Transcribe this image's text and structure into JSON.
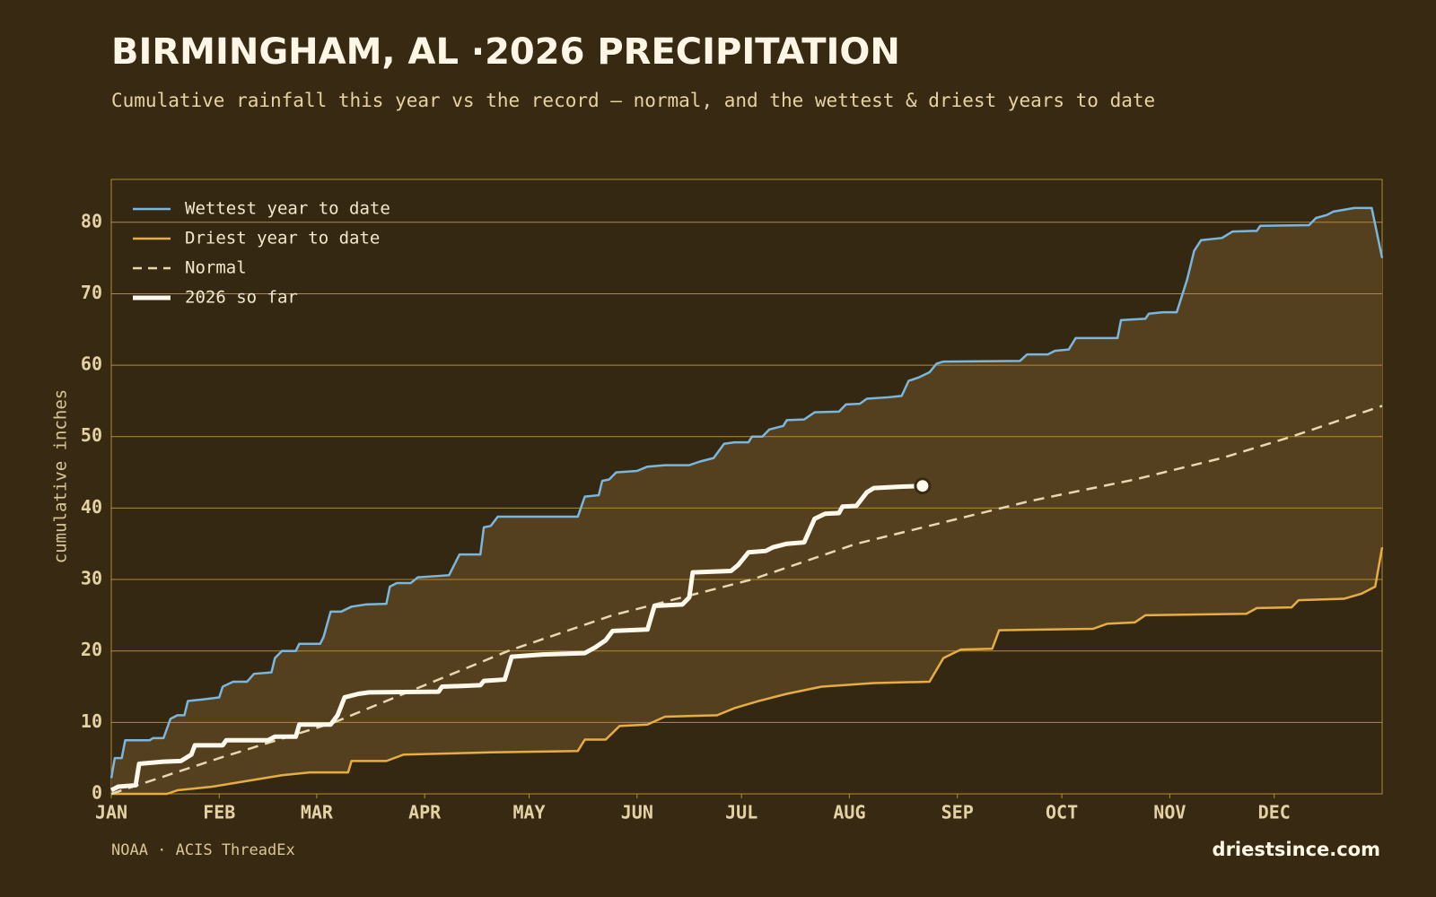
{
  "chart_data": {
    "type": "line",
    "title": "BIRMINGHAM, AL ·2026 PRECIPITATION",
    "subtitle": "Cumulative rainfall this year vs the record — normal, and the wettest & driest years to date",
    "y_label": "cumulative inches",
    "source": "NOAA · ACIS ThreadEx",
    "site": "driestsince.com",
    "xlim": [
      1,
      366
    ],
    "xticks": [
      {
        "value": 1,
        "label": "JAN"
      },
      {
        "value": 32,
        "label": "FEB"
      },
      {
        "value": 60,
        "label": "MAR"
      },
      {
        "value": 91,
        "label": "APR"
      },
      {
        "value": 121,
        "label": "MAY"
      },
      {
        "value": 152,
        "label": "JUN"
      },
      {
        "value": 182,
        "label": "JUL"
      },
      {
        "value": 213,
        "label": "AUG"
      },
      {
        "value": 244,
        "label": "SEP"
      },
      {
        "value": 274,
        "label": "OCT"
      },
      {
        "value": 305,
        "label": "NOV"
      },
      {
        "value": 335,
        "label": "DEC"
      }
    ],
    "ylim": [
      0,
      86
    ],
    "yticks": [
      0,
      10,
      20,
      30,
      40,
      50,
      60,
      70,
      80
    ],
    "grid": true,
    "legend": "top-left",
    "band_color": "#54401e",
    "series": [
      {
        "name": "Wettest year to date",
        "color": "#7ab6de",
        "style": "solid",
        "x": [
          1,
          2,
          4,
          5,
          12,
          13,
          16,
          18,
          20,
          22,
          23,
          27,
          32,
          33,
          36,
          40,
          42,
          47,
          48,
          50,
          54,
          55,
          61,
          62,
          64,
          67,
          70,
          74,
          80,
          81,
          83,
          87,
          89,
          95,
          98,
          101,
          107,
          108,
          110,
          112,
          135,
          137,
          141,
          142,
          144,
          146,
          152,
          155,
          160,
          167,
          170,
          174,
          177,
          180,
          184,
          185,
          188,
          190,
          194,
          195,
          200,
          203,
          210,
          212,
          216,
          218,
          224,
          228,
          230,
          233,
          236,
          238,
          240,
          262,
          264,
          270,
          272,
          276,
          278,
          290,
          291,
          298,
          299,
          303,
          307,
          310,
          312,
          314,
          320,
          323,
          330,
          331,
          345,
          347,
          350,
          352,
          358,
          363,
          366
        ],
        "values": [
          2.2,
          5,
          5,
          7.5,
          7.5,
          7.8,
          7.8,
          10.5,
          11,
          11,
          13,
          13.2,
          13.5,
          15,
          15.7,
          15.7,
          16.8,
          17,
          19,
          20,
          20,
          21,
          21,
          22,
          25.5,
          25.5,
          26.2,
          26.5,
          26.6,
          29,
          29.5,
          29.5,
          30.3,
          30.5,
          30.6,
          33.5,
          33.5,
          37.3,
          37.5,
          38.8,
          38.8,
          41.6,
          41.8,
          43.8,
          44,
          45,
          45.2,
          45.8,
          46,
          46,
          46.5,
          47,
          49,
          49.2,
          49.2,
          50,
          50,
          51,
          51.5,
          52.3,
          52.4,
          53.4,
          53.5,
          54.5,
          54.6,
          55.3,
          55.5,
          55.7,
          57.8,
          58.3,
          59,
          60.2,
          60.5,
          60.6,
          61.5,
          61.5,
          62,
          62.2,
          63.8,
          63.8,
          66.3,
          66.5,
          67.2,
          67.4,
          67.4,
          72,
          76,
          77.5,
          77.8,
          78.7,
          78.8,
          79.5,
          79.6,
          80.6,
          81,
          81.5,
          82,
          82,
          75
        ]
      },
      {
        "name": "Driest year to date",
        "color": "#e6ae40",
        "style": "solid",
        "x": [
          1,
          17,
          20,
          30,
          40,
          50,
          58,
          69,
          70,
          80,
          85,
          110,
          135,
          137,
          143,
          147,
          155,
          160,
          175,
          180,
          187,
          195,
          205,
          220,
          236,
          240,
          245,
          254,
          256,
          283,
          287,
          295,
          298,
          327,
          330,
          340,
          342,
          355,
          360,
          364,
          366
        ],
        "values": [
          0,
          0,
          0.5,
          1,
          1.8,
          2.6,
          3,
          3,
          4.6,
          4.6,
          5.5,
          5.8,
          6,
          7.6,
          7.6,
          9.5,
          9.7,
          10.8,
          11,
          12,
          13,
          14,
          15,
          15.5,
          15.7,
          19,
          20.2,
          20.3,
          22.9,
          23.1,
          23.8,
          24,
          25,
          25.2,
          26,
          26.1,
          27.1,
          27.3,
          28,
          29,
          34.5
        ]
      },
      {
        "name": "Normal",
        "color": "#e8d8b0",
        "style": "dashed",
        "x": [
          1,
          32,
          65,
          90,
          115,
          145,
          185,
          215,
          240,
          265,
          295,
          320,
          340,
          366
        ],
        "values": [
          0,
          5,
          10,
          15,
          20,
          25,
          30,
          35,
          38,
          41,
          44,
          47,
          50,
          54.3
        ]
      },
      {
        "name": "2026 so far",
        "color": "#fff8ec",
        "style": "bold",
        "x": [
          1,
          3,
          8,
          9,
          16,
          21,
          24,
          25,
          33,
          34,
          46,
          48,
          54,
          55,
          64,
          66,
          68,
          72,
          75,
          95,
          96,
          107,
          108,
          114,
          116,
          125,
          137,
          140,
          143,
          145,
          155,
          157,
          165,
          167,
          168,
          179,
          181,
          184,
          189,
          191,
          195,
          200,
          203,
          206,
          210,
          211,
          215,
          218,
          220,
          228,
          234
        ],
        "values": [
          0.5,
          1,
          1.2,
          4.2,
          4.5,
          4.6,
          5.5,
          6.8,
          6.8,
          7.5,
          7.5,
          8,
          8,
          9.7,
          9.7,
          11,
          13.5,
          14,
          14.2,
          14.3,
          15,
          15.2,
          15.8,
          16,
          19.2,
          19.5,
          19.7,
          20.5,
          21.5,
          22.8,
          23,
          26.3,
          26.5,
          27.5,
          31,
          31.2,
          32,
          33.8,
          34,
          34.5,
          35,
          35.2,
          38.5,
          39.2,
          39.3,
          40.2,
          40.3,
          42.2,
          42.8,
          43,
          43.1
        ]
      }
    ]
  }
}
